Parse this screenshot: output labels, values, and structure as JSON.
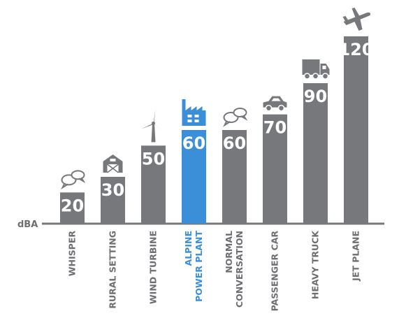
{
  "chart_data": {
    "type": "bar",
    "unit_label": "dBA",
    "categories": [
      [
        "WHISPER"
      ],
      [
        "RURAL SETTING"
      ],
      [
        "WIND TURBINE"
      ],
      [
        "ALPINE",
        "POWER PLANT"
      ],
      [
        "NORMAL",
        "CONVERSATION"
      ],
      [
        "PASSENGER CAR"
      ],
      [
        "HEAVY TRUCK"
      ],
      [
        "JET PLANE"
      ]
    ],
    "values": [
      20,
      30,
      50,
      60,
      60,
      70,
      90,
      120
    ],
    "value_labels": [
      "20",
      "30",
      "50",
      "60",
      "60",
      "70",
      "90",
      "120"
    ],
    "icons": [
      "speech-bubbles-icon",
      "barn-icon",
      "wind-turbine-icon",
      "factory-icon",
      "speech-bubbles-icon",
      "car-icon",
      "truck-icon",
      "airplane-icon"
    ],
    "highlight_index": 3,
    "ylim": [
      0,
      120
    ],
    "colors": {
      "bar": "#77787b",
      "highlight": "#3b8fd9",
      "axis": "#77787b",
      "label": "#6d6e71"
    }
  }
}
